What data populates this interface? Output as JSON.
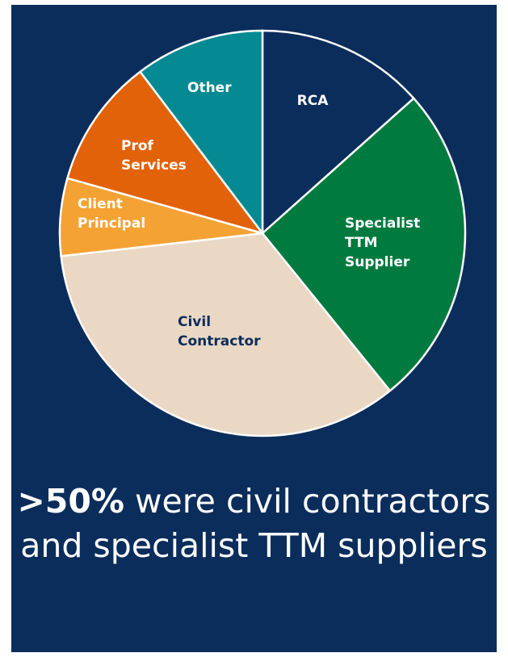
{
  "chart_data": {
    "type": "pie",
    "slices": [
      {
        "label_lines": [
          "RCA"
        ],
        "value": 13,
        "color": "#0b2d5b",
        "label_color": "#ffffff"
      },
      {
        "label_lines": [
          "Specialist",
          "TTM",
          "Supplier"
        ],
        "value": 25,
        "color": "#007a3f",
        "label_color": "#ffffff"
      },
      {
        "label_lines": [
          "Civil",
          "Contractor"
        ],
        "value": 33,
        "color": "#ead8c5",
        "label_color": "#0b2d5b"
      },
      {
        "label_lines": [
          "Client",
          "Principal"
        ],
        "value": 6,
        "color": "#f5a234",
        "label_color": "#ffffff"
      },
      {
        "label_lines": [
          "Prof",
          "Services"
        ],
        "value": 10,
        "color": "#e2620a",
        "label_color": "#ffffff"
      },
      {
        "label_lines": [
          "Other"
        ],
        "value": 10,
        "color": "#058a93",
        "label_color": "#ffffff"
      }
    ]
  },
  "caption": {
    "highlight": ">50%",
    "rest": " were civil contractors and specialist TTM suppliers"
  }
}
